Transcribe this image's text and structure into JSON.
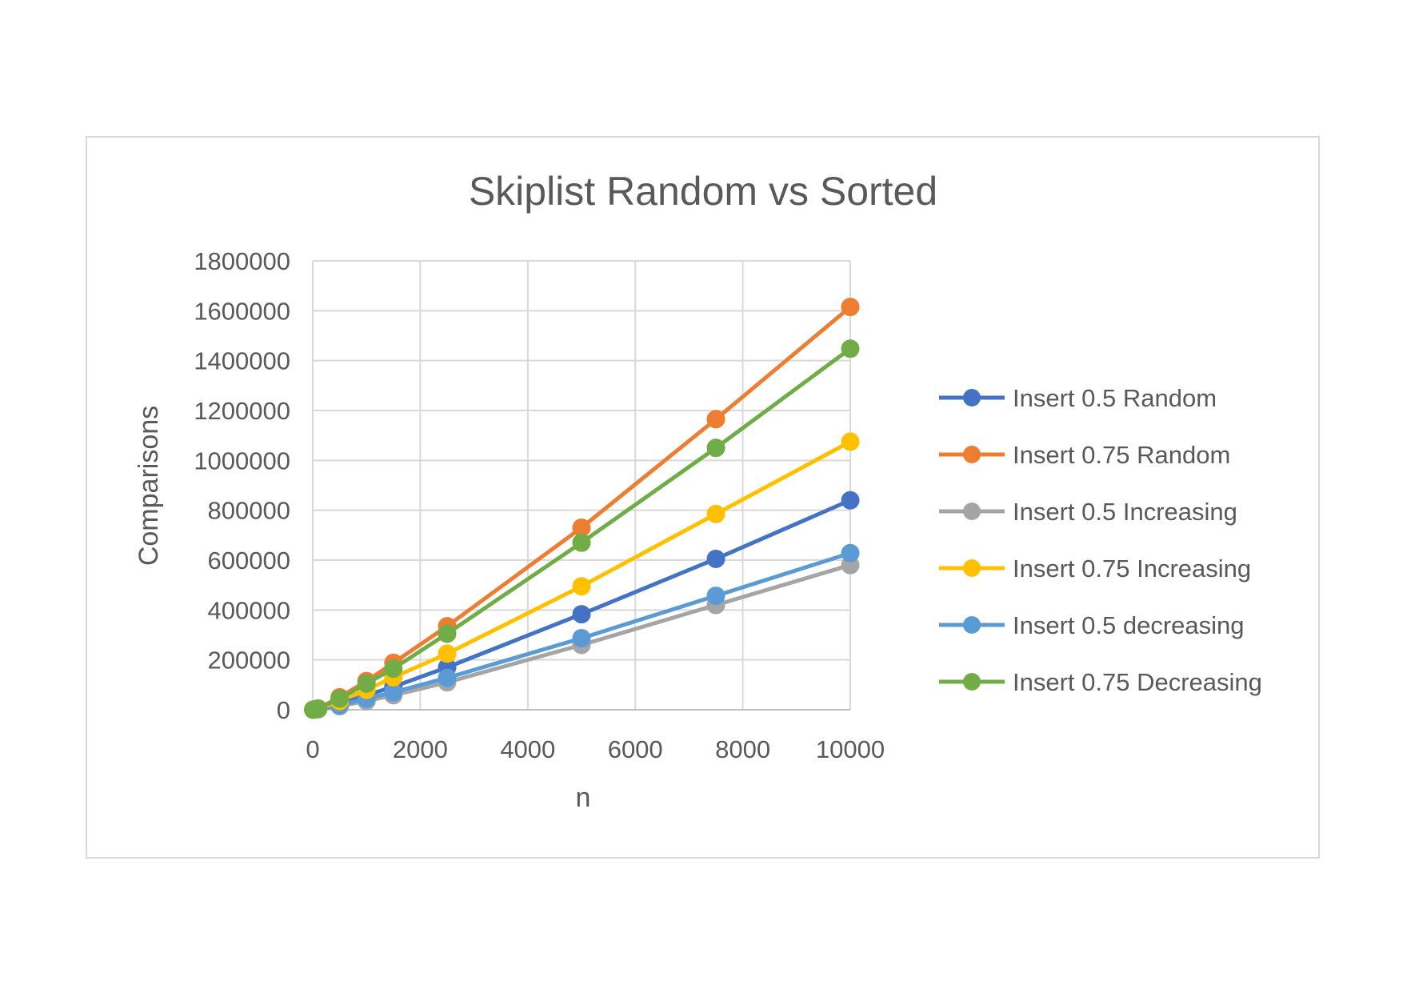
{
  "chart_data": {
    "type": "line",
    "title": "Skiplist Random vs Sorted",
    "xlabel": "n",
    "ylabel": "Comparisons",
    "xlim": [
      0,
      10000
    ],
    "ylim": [
      0,
      1800000
    ],
    "x_ticks": [
      "0",
      "2000",
      "4000",
      "6000",
      "8000",
      "10000"
    ],
    "y_ticks": [
      "0",
      "200000",
      "400000",
      "600000",
      "800000",
      "1000000",
      "1200000",
      "1400000",
      "1600000",
      "1800000"
    ],
    "grid": true,
    "legend_position": "right",
    "x": [
      10,
      100,
      500,
      1000,
      1500,
      2500,
      5000,
      7500,
      10000
    ],
    "series": [
      {
        "name": "Insert 0.5 Random",
        "color": "#4472C4",
        "values": [
          300,
          3500,
          24000,
          58000,
          92000,
          170000,
          383000,
          605000,
          840000
        ]
      },
      {
        "name": "Insert 0.75 Random",
        "color": "#ED7D31",
        "values": [
          400,
          5000,
          50000,
          115000,
          188000,
          335000,
          730000,
          1165000,
          1615000
        ]
      },
      {
        "name": "Insert 0.5 Increasing",
        "color": "#A5A5A5",
        "values": [
          200,
          2000,
          14000,
          35000,
          58000,
          110000,
          260000,
          420000,
          580000
        ]
      },
      {
        "name": "Insert 0.75 Increasing",
        "color": "#FFC000",
        "values": [
          300,
          4000,
          35000,
          80000,
          130000,
          225000,
          495000,
          785000,
          1075000
        ]
      },
      {
        "name": "Insert 0.5 decreasing",
        "color": "#5B9BD5",
        "values": [
          200,
          2500,
          18000,
          45000,
          70000,
          128000,
          287000,
          457000,
          628000
        ]
      },
      {
        "name": "Insert 0.75 Decreasing",
        "color": "#70AD47",
        "values": [
          400,
          4500,
          45000,
          105000,
          165000,
          305000,
          670000,
          1050000,
          1448000
        ]
      }
    ]
  }
}
